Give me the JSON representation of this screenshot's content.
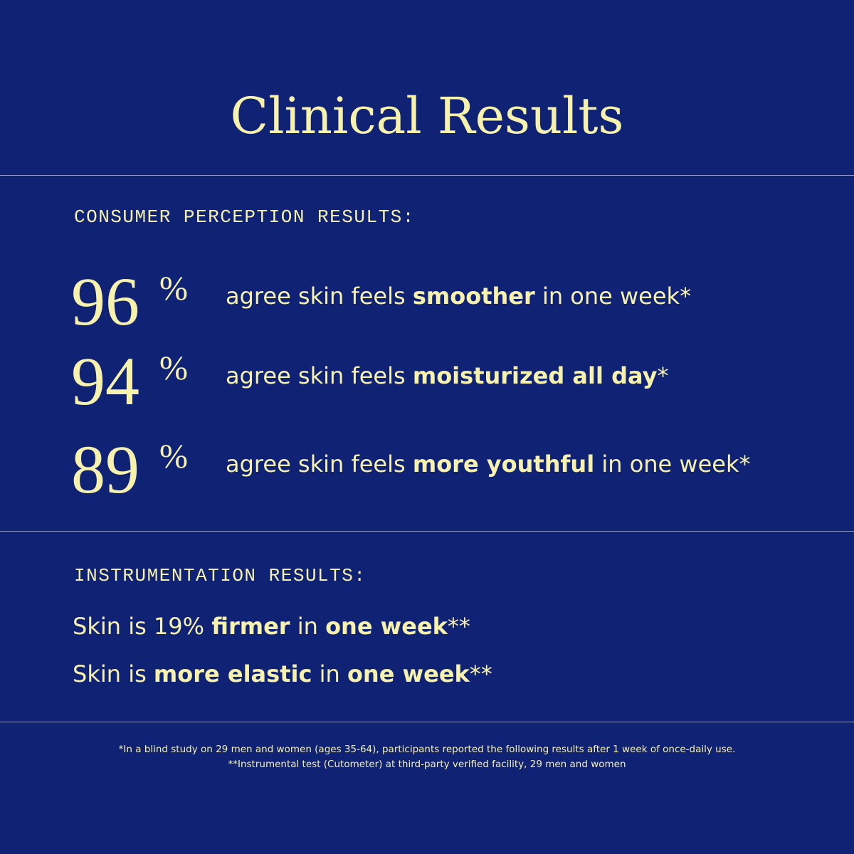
{
  "title": "Clinical Results",
  "consumer": {
    "heading": "CONSUMER PERCEPTION RESULTS:",
    "stats": [
      {
        "number": 96,
        "unit": "%",
        "parts": [
          {
            "text": "agree skin feels ",
            "bold": false
          },
          {
            "text": "smoother",
            "bold": true
          },
          {
            "text": " in one week*",
            "bold": false
          }
        ]
      },
      {
        "number": 94,
        "unit": "%",
        "parts": [
          {
            "text": "agree skin feels ",
            "bold": false
          },
          {
            "text": "moisturized all day",
            "bold": true
          },
          {
            "text": "*",
            "bold": false
          }
        ]
      },
      {
        "number": 89,
        "unit": "%",
        "parts": [
          {
            "text": "agree skin feels ",
            "bold": false
          },
          {
            "text": "more youthful",
            "bold": true
          },
          {
            "text": " in one week*",
            "bold": false
          }
        ]
      }
    ]
  },
  "instrumentation": {
    "heading": "INSTRUMENTATION RESULTS:",
    "lines": [
      [
        {
          "text": "Skin is 19% ",
          "bold": false
        },
        {
          "text": "firmer",
          "bold": true
        },
        {
          "text": " in ",
          "bold": false
        },
        {
          "text": "one week",
          "bold": true
        },
        {
          "text": "**",
          "bold": false
        }
      ],
      [
        {
          "text": "Skin is ",
          "bold": false
        },
        {
          "text": "more elastic",
          "bold": true
        },
        {
          "text": " in ",
          "bold": false
        },
        {
          "text": "one week",
          "bold": true
        },
        {
          "text": "**",
          "bold": false
        }
      ]
    ]
  },
  "footnotes": [
    "*In a blind study on 29 men and women (ages 35-64), participants reported the following results after 1 week of once-daily use.",
    "**Instrumental test (Cutometer) at third-party verified facility, 29 men and women"
  ]
}
